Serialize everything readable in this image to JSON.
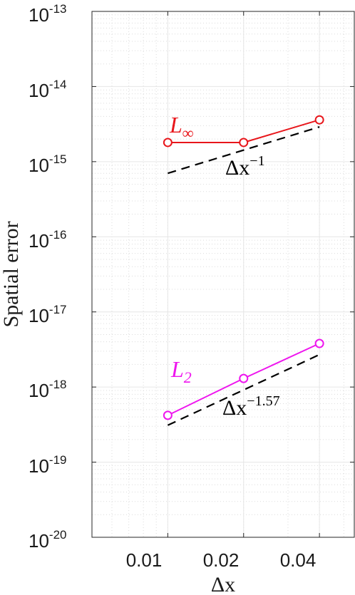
{
  "chart_data": {
    "type": "line",
    "xlabel": "Δx",
    "ylabel": "Spatial error",
    "xscale": "log",
    "yscale": "log",
    "xlim": [
      0.005,
      0.055
    ],
    "ylim": [
      1e-20,
      1e-13
    ],
    "grid": true,
    "minor_grid": true,
    "xticks": [
      {
        "value": 0.01,
        "label": "0.01"
      },
      {
        "value": 0.02,
        "label": "0.02"
      },
      {
        "value": 0.04,
        "label": "0.04"
      }
    ],
    "yticks": [
      {
        "value": 1e-13,
        "base": "10",
        "exp": "-13"
      },
      {
        "value": 1e-14,
        "base": "10",
        "exp": "-14"
      },
      {
        "value": 1e-15,
        "base": "10",
        "exp": "-15"
      },
      {
        "value": 1e-16,
        "base": "10",
        "exp": "-16"
      },
      {
        "value": 1e-17,
        "base": "10",
        "exp": "-17"
      },
      {
        "value": 1e-18,
        "base": "10",
        "exp": "-18"
      },
      {
        "value": 1e-19,
        "base": "10",
        "exp": "-19"
      },
      {
        "value": 1e-20,
        "base": "10",
        "exp": "-20"
      }
    ],
    "series": [
      {
        "name": "L∞",
        "label_main": "L",
        "label_sub": "∞",
        "color": "#e8161b",
        "marker": "circle",
        "x": [
          0.01,
          0.02,
          0.04
        ],
        "y": [
          1.8e-15,
          1.8e-15,
          3.6e-15
        ]
      },
      {
        "name": "L2",
        "label_main": "L",
        "label_sub": "2",
        "color": "#ee15ee",
        "marker": "circle",
        "x": [
          0.01,
          0.02,
          0.04
        ],
        "y": [
          4.2e-19,
          1.3e-18,
          3.8e-18
        ]
      }
    ],
    "reference_lines": [
      {
        "label_main": "Δx",
        "label_exp": "−1",
        "color": "#000000",
        "style": "dashed",
        "x": [
          0.01,
          0.04
        ],
        "y": [
          7e-16,
          2.9e-15
        ]
      },
      {
        "label_main": "Δx",
        "label_exp": "−1.57",
        "color": "#000000",
        "style": "dashed",
        "x": [
          0.01,
          0.04
        ],
        "y": [
          3.1e-19,
          2.7e-18
        ]
      }
    ]
  }
}
